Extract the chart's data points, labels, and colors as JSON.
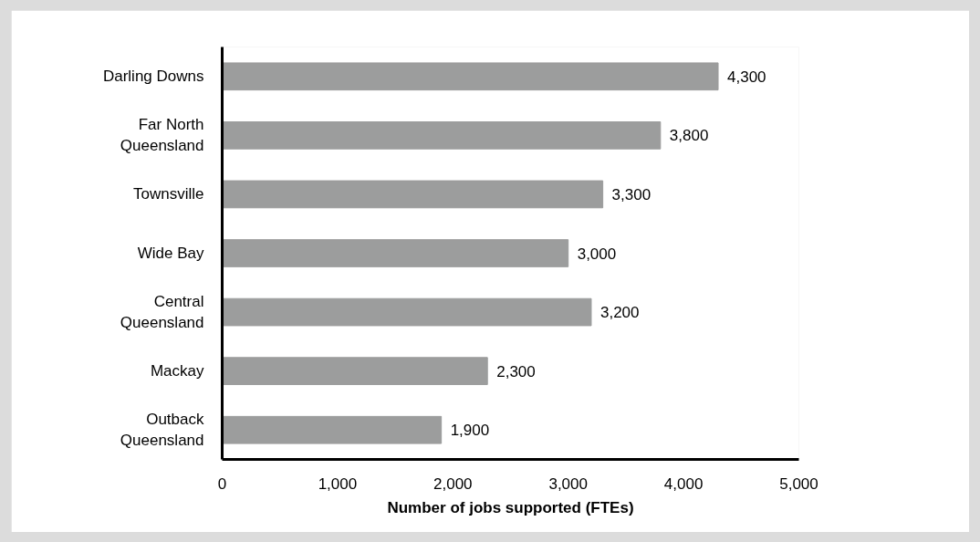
{
  "chart_data": {
    "type": "bar",
    "orientation": "horizontal",
    "xlabel": "Number of jobs supported (FTEs)",
    "categories": [
      "Darling Downs",
      "Far North Queensland",
      "Townsville",
      "Wide Bay",
      "Central Queensland",
      "Mackay",
      "Outback Queensland"
    ],
    "values": [
      4300,
      3800,
      3300,
      3000,
      3200,
      2300,
      1900
    ],
    "value_labels": [
      "4,300",
      "3,800",
      "3,300",
      "3,000",
      "3,200",
      "2,300",
      "1,900"
    ],
    "color": "#9c9d9d",
    "xlim": [
      0,
      5000
    ],
    "xticks": [
      0,
      {
        "value": 1000,
        "label": "1,000"
      },
      {
        "value": 2000,
        "label": "2,000"
      },
      {
        "value": 3000,
        "label": "3,000"
      },
      {
        "value": 4000,
        "label": "4,000"
      },
      {
        "value": 5000,
        "label": "5,000"
      }
    ],
    "grid": false
  }
}
